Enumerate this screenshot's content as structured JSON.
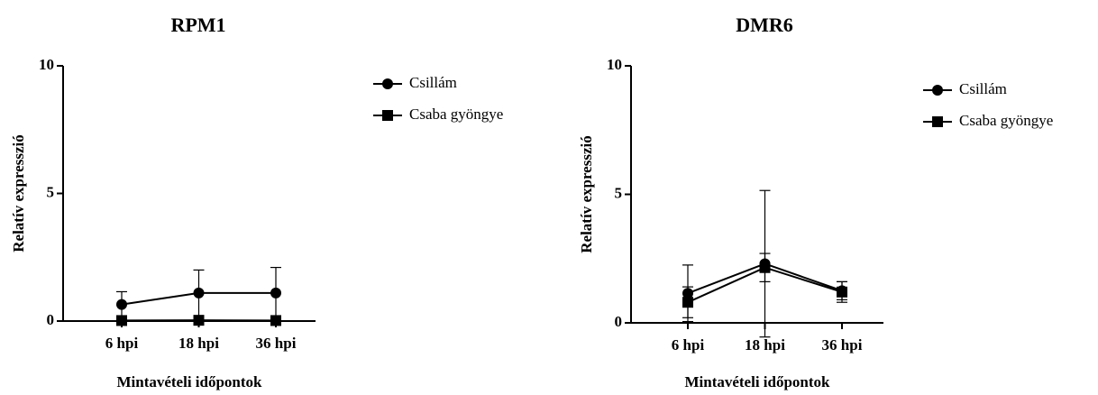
{
  "chart_data": [
    {
      "type": "line",
      "title": "RPM1",
      "x_label": "Mintavételi időpontok",
      "y_label": "Relatív expresszió",
      "categories": [
        "6 hpi",
        "18 hpi",
        "36 hpi"
      ],
      "ylim": [
        0,
        10
      ],
      "yticks": [
        0,
        5,
        10
      ],
      "series": [
        {
          "name": "Csillám",
          "color": "#000000",
          "marker": "circle",
          "values": [
            0.65,
            1.1,
            1.1
          ],
          "errors": [
            0.5,
            0.9,
            1.0
          ]
        },
        {
          "name": "Csaba gyöngye",
          "color": "#000000",
          "marker": "square",
          "values": [
            0.02,
            0.03,
            0.02
          ],
          "errors": [
            0.01,
            0.01,
            0.01
          ]
        }
      ]
    },
    {
      "type": "line",
      "title": "DMR6",
      "x_label": "Mintavételi időpontok",
      "y_label": "Relatív expresszió",
      "categories": [
        "6 hpi",
        "18 hpi",
        "36 hpi"
      ],
      "ylim": [
        0,
        10
      ],
      "yticks": [
        0,
        5,
        10
      ],
      "series": [
        {
          "name": "Csillám",
          "color": "#000000",
          "marker": "circle",
          "values": [
            1.15,
            2.3,
            1.25
          ],
          "errors": [
            1.1,
            2.85,
            0.35
          ]
        },
        {
          "name": "Csaba gyöngye",
          "color": "#000000",
          "marker": "square",
          "values": [
            0.8,
            2.15,
            1.2
          ],
          "errors": [
            0.6,
            0.55,
            0.4
          ]
        }
      ]
    }
  ]
}
